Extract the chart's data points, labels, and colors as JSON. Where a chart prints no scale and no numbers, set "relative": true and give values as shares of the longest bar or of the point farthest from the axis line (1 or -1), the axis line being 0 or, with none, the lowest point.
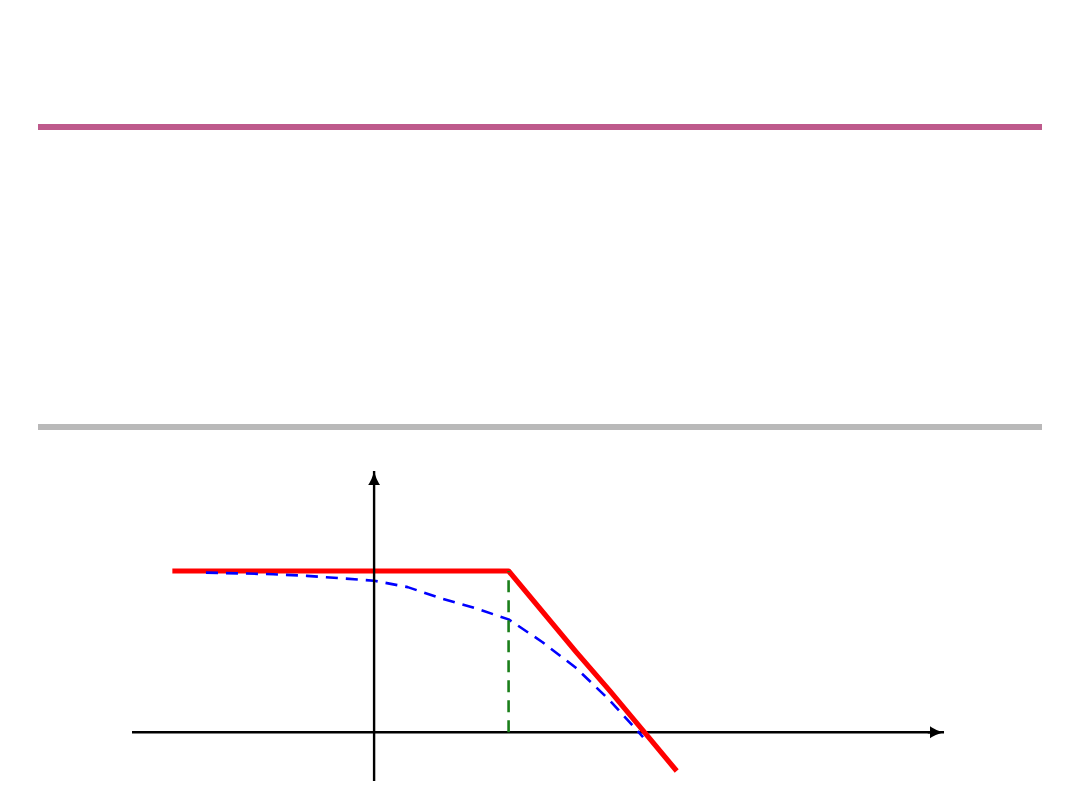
{
  "chart_data": {
    "type": "line",
    "relative": true,
    "categories": [
      null,
      null,
      null,
      null,
      null,
      null,
      null,
      null,
      null,
      null,
      null,
      null,
      null,
      null,
      null,
      null
    ],
    "series": [
      {
        "color": "#ff0000",
        "values": [
          1,
          1,
          1,
          1,
          1,
          1,
          1,
          1,
          1,
          1,
          1,
          0.75,
          0.5,
          0.26,
          0.01,
          -0.24
        ],
        "line_style": "solid"
      },
      {
        "color": "#0000ff",
        "values": [
          null,
          0.99,
          0.985,
          0.98,
          0.97,
          0.955,
          0.94,
          0.9,
          0.83,
          0.77,
          0.7,
          0.56,
          0.4,
          0.2,
          -0.03,
          null
        ],
        "line_style": "dashed"
      }
    ],
    "marker": "none"
  }
}
